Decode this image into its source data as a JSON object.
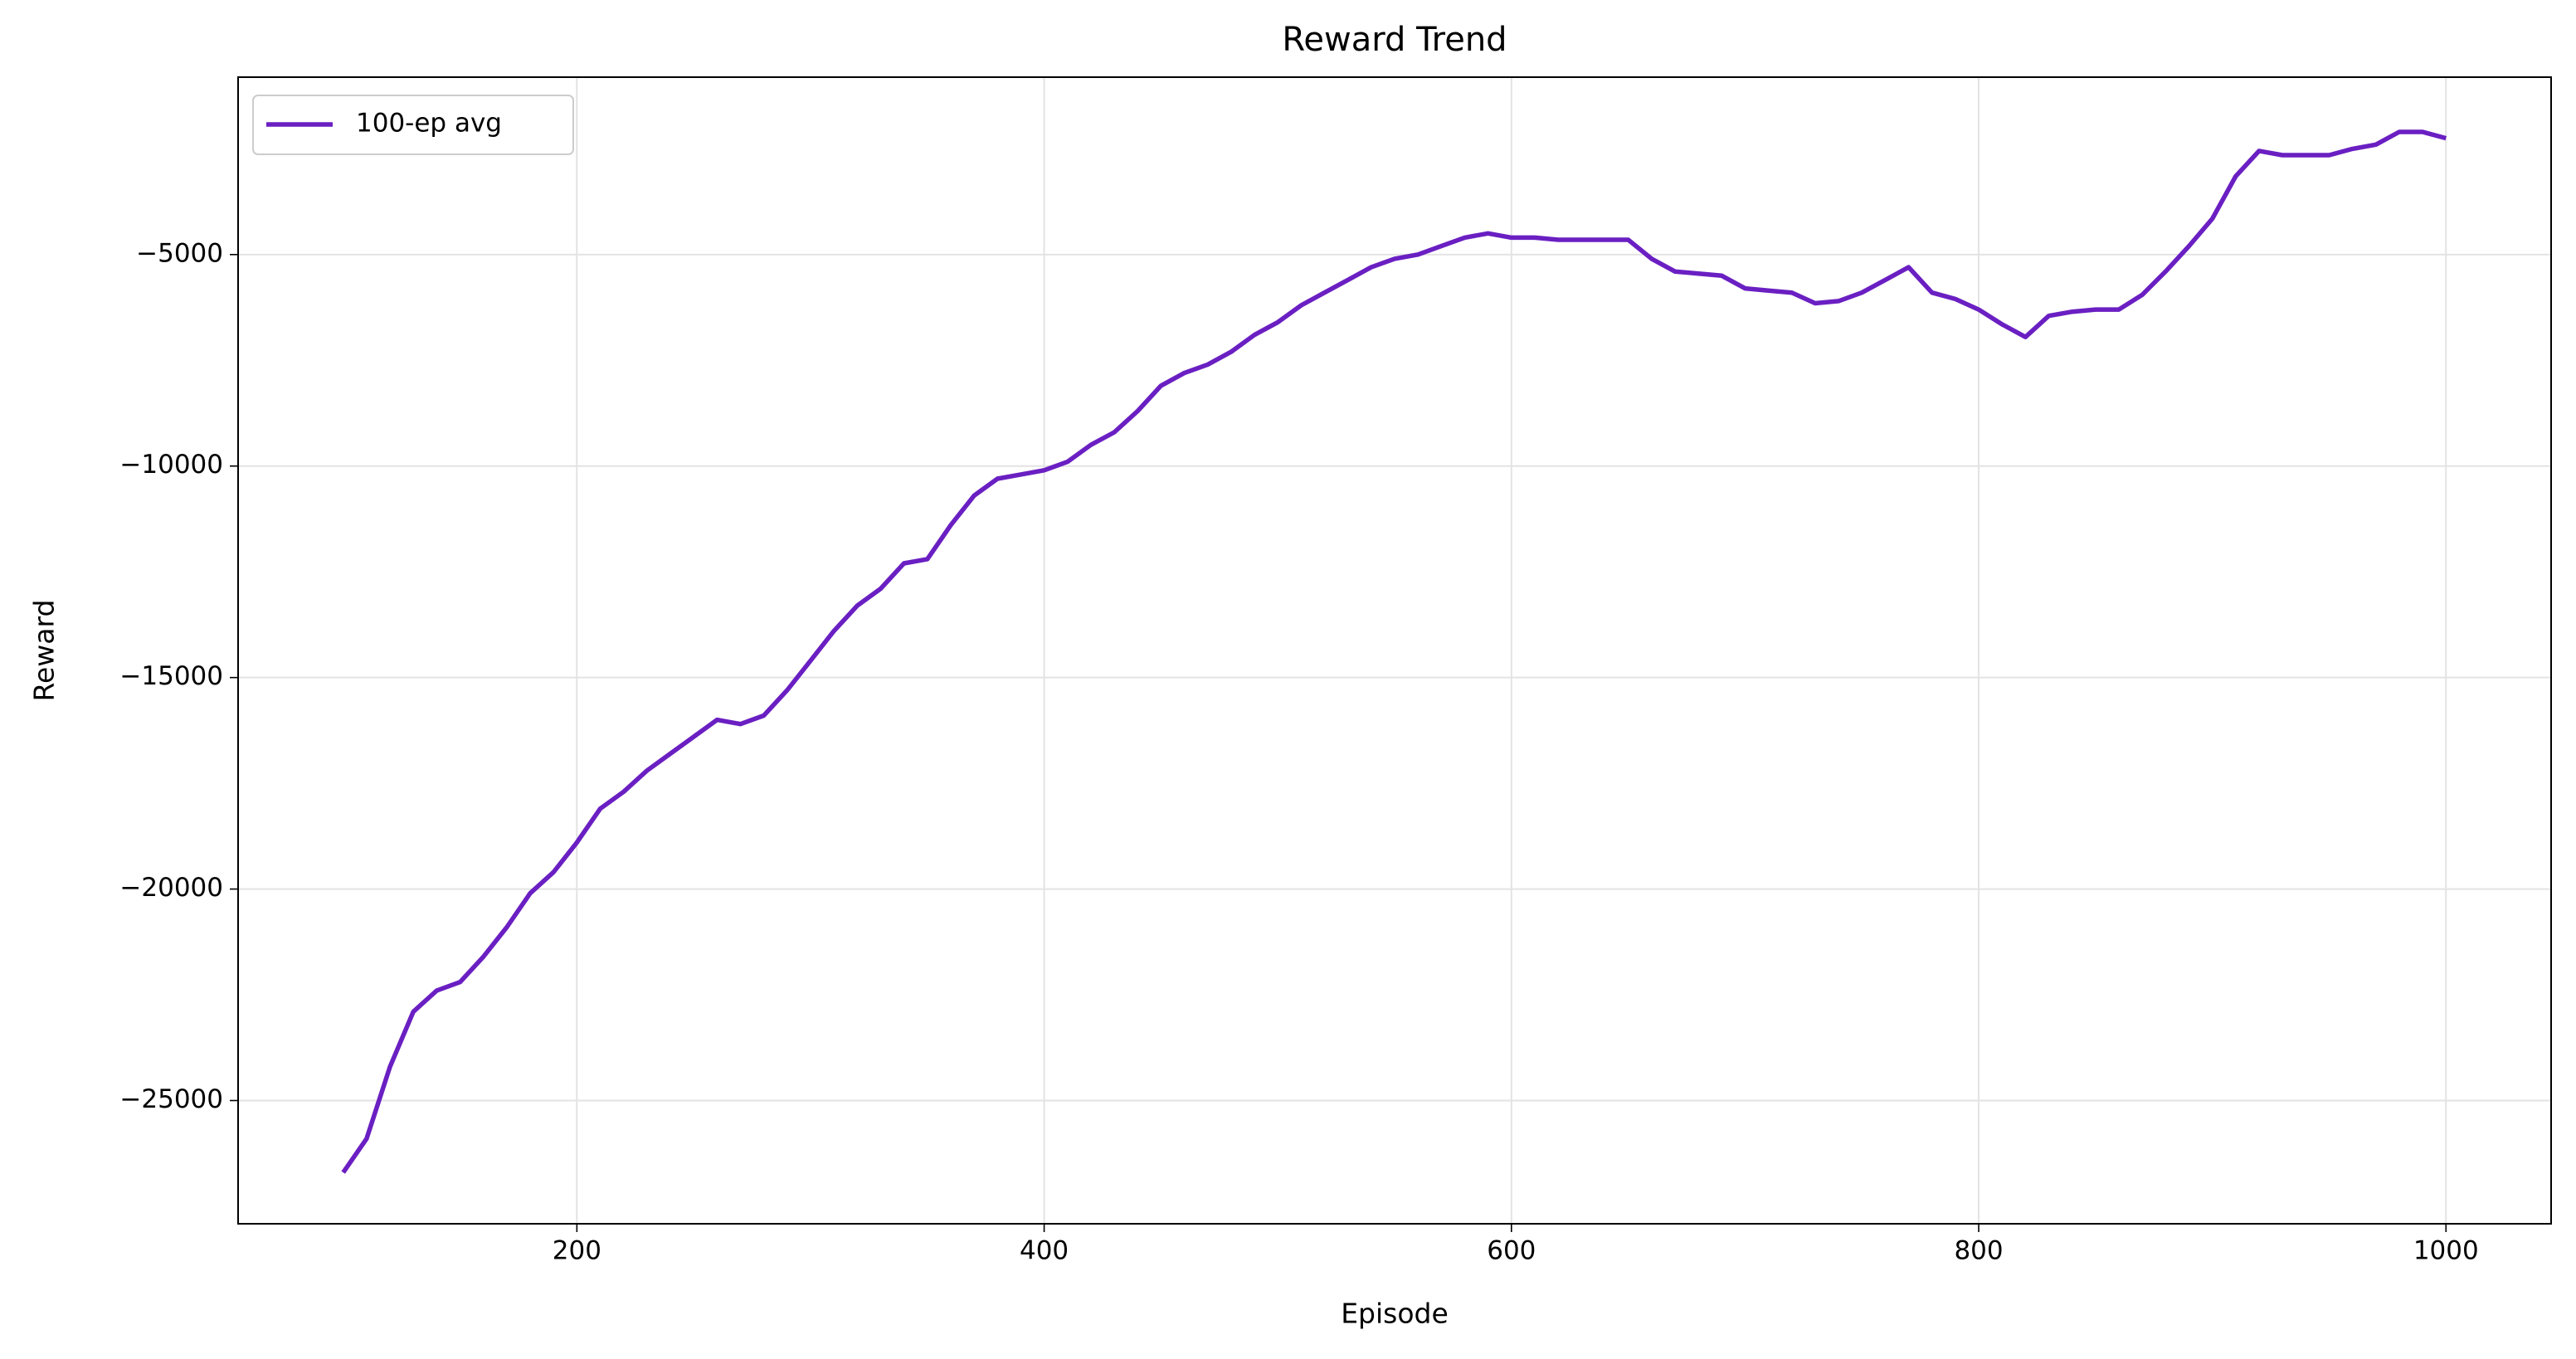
{
  "chart_data": {
    "type": "line",
    "title": "Reward Trend",
    "x_label": "Episode",
    "y_label": "Reward",
    "x": [
      100,
      110,
      120,
      130,
      140,
      150,
      160,
      170,
      180,
      190,
      200,
      210,
      220,
      230,
      240,
      250,
      260,
      270,
      280,
      290,
      300,
      310,
      320,
      330,
      340,
      350,
      360,
      370,
      380,
      390,
      400,
      410,
      420,
      430,
      440,
      450,
      460,
      470,
      480,
      490,
      500,
      510,
      520,
      530,
      540,
      550,
      560,
      570,
      580,
      590,
      600,
      610,
      620,
      630,
      640,
      650,
      660,
      670,
      680,
      690,
      700,
      710,
      720,
      730,
      740,
      750,
      760,
      770,
      780,
      790,
      800,
      810,
      820,
      830,
      840,
      850,
      860,
      870,
      880,
      890,
      900,
      910,
      920,
      930,
      940,
      950,
      960,
      970,
      980,
      990,
      1000
    ],
    "series": [
      {
        "name": "100-ep avg",
        "color": "#6a1fc2",
        "values": [
          -26700,
          -25900,
          -24200,
          -22900,
          -22400,
          -22200,
          -21600,
          -20900,
          -20100,
          -19600,
          -18900,
          -18100,
          -17700,
          -17200,
          -16800,
          -16400,
          -16000,
          -16100,
          -15900,
          -15300,
          -14600,
          -13900,
          -13300,
          -12900,
          -12300,
          -12200,
          -11400,
          -10700,
          -10300,
          -10200,
          -10100,
          -9900,
          -9500,
          -9200,
          -8700,
          -8100,
          -7800,
          -7600,
          -7300,
          -6900,
          -6600,
          -6200,
          -5900,
          -5600,
          -5300,
          -5100,
          -5000,
          -4800,
          -4600,
          -4500,
          -4600,
          -4600,
          -4650,
          -4650,
          -4650,
          -4650,
          -5100,
          -5400,
          -5450,
          -5500,
          -5800,
          -5850,
          -5900,
          -6150,
          -6100,
          -5900,
          -5600,
          -5300,
          -5900,
          -6050,
          -6300,
          -6650,
          -6950,
          -6450,
          -6350,
          -6300,
          -6300,
          -5950,
          -5400,
          -4800,
          -4150,
          -3150,
          -2550,
          -2650,
          -2650,
          -2650,
          -2500,
          -2400,
          -2100,
          -2100,
          -2250
        ]
      }
    ],
    "xlim": [
      55,
      1045
    ],
    "ylim": [
      -27913,
      -806
    ],
    "xticks": [
      200,
      400,
      600,
      800,
      1000
    ],
    "yticks": [
      {
        "value": -25000,
        "label": "−25000"
      },
      {
        "value": -20000,
        "label": "−20000"
      },
      {
        "value": -15000,
        "label": "−15000"
      },
      {
        "value": -10000,
        "label": "−10000"
      },
      {
        "value": -5000,
        "label": "−5000"
      }
    ],
    "grid": true,
    "legend": "upper left"
  }
}
